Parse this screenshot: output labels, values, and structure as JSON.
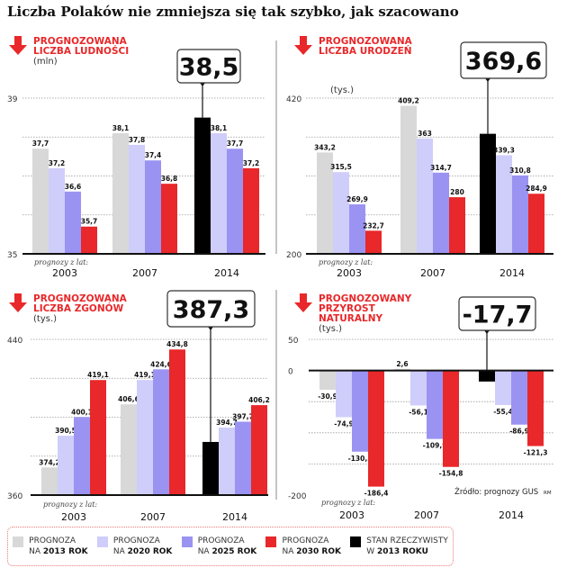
{
  "title": "Liczba Polaków nie zmniejsza się tak szybko, jak szacowano",
  "source": "Źródło: prognozy GUS",
  "author_mark": "RM",
  "forecast_label": "prognozy z lat:",
  "colors": {
    "f2013": "#d8d8d8",
    "f2020": "#cfcdfa",
    "f2025": "#9b93f2",
    "f2030": "#e8282a",
    "actual": "#000000",
    "accent": "#e8282a"
  },
  "legend": [
    {
      "line1": "PROGNOZA",
      "line2a": "NA ",
      "line2b": "2013 ROK",
      "color": "#d8d8d8"
    },
    {
      "line1": "PROGNOZA",
      "line2a": "NA ",
      "line2b": "2020 ROK",
      "color": "#cfcdfa"
    },
    {
      "line1": "PROGNOZA",
      "line2a": "NA ",
      "line2b": "2025 ROK",
      "color": "#9b93f2"
    },
    {
      "line1": "PROGNOZA",
      "line2a": "NA ",
      "line2b": "2030 ROK",
      "color": "#e8282a"
    },
    {
      "line1": "STAN RZECZYWISTY",
      "line2a": "W ",
      "line2b": "2013 ROKU",
      "color": "#000000"
    }
  ],
  "chart_data": [
    {
      "type": "bar",
      "title": [
        "PROGNOZOWANA",
        "LICZBA LUDNOŚCI"
      ],
      "unit": "(mln)",
      "callout": "38,5",
      "categories": [
        "2003",
        "2007",
        "2014"
      ],
      "ylim": [
        35,
        39
      ],
      "yticks": [
        39,
        35
      ],
      "grid_step": 1,
      "grid": true,
      "groups": [
        {
          "bars": [
            {
              "s": "f2013",
              "v": 37.7
            },
            {
              "s": "f2020",
              "v": 37.2
            },
            {
              "s": "f2025",
              "v": 36.6
            },
            {
              "s": "f2030",
              "v": 35.7
            }
          ]
        },
        {
          "bars": [
            {
              "s": "f2013",
              "v": 38.1
            },
            {
              "s": "f2020",
              "v": 37.8
            },
            {
              "s": "f2025",
              "v": 37.4
            },
            {
              "s": "f2030",
              "v": 36.8
            }
          ]
        },
        {
          "bars": [
            {
              "s": "actual",
              "v": 38.5,
              "nolabel": true
            },
            {
              "s": "f2020",
              "v": 38.1
            },
            {
              "s": "f2025",
              "v": 37.7
            },
            {
              "s": "f2030",
              "v": 37.2
            }
          ]
        }
      ]
    },
    {
      "type": "bar",
      "title": [
        "PROGNOZOWANA",
        "LICZBA URODZEŃ"
      ],
      "unit": "(tys.)",
      "callout": "369,6",
      "categories": [
        "2003",
        "2007",
        "2014"
      ],
      "ylim": [
        200,
        420
      ],
      "yticks": [
        420,
        200
      ],
      "grid_step": 55,
      "grid": true,
      "groups": [
        {
          "bars": [
            {
              "s": "f2013",
              "v": 343.2
            },
            {
              "s": "f2020",
              "v": 315.5
            },
            {
              "s": "f2025",
              "v": 269.9
            },
            {
              "s": "f2030",
              "v": 232.7
            }
          ]
        },
        {
          "bars": [
            {
              "s": "f2013",
              "v": 409.2
            },
            {
              "s": "f2020",
              "v": 363
            },
            {
              "s": "f2025",
              "v": 314.7
            },
            {
              "s": "f2030",
              "v": 280
            }
          ]
        },
        {
          "bars": [
            {
              "s": "actual",
              "v": 369.6,
              "nolabel": true
            },
            {
              "s": "f2020",
              "v": 339.3
            },
            {
              "s": "f2025",
              "v": 310.8
            },
            {
              "s": "f2030",
              "v": 284.9
            }
          ]
        }
      ]
    },
    {
      "type": "bar",
      "title": [
        "PROGNOZOWANA",
        "LICZBA ZGONÓW"
      ],
      "unit": "(tys.)",
      "callout": "387,3",
      "categories": [
        "2003",
        "2007",
        "2014"
      ],
      "ylim": [
        360,
        440
      ],
      "yticks": [
        440,
        360
      ],
      "grid_step": 20,
      "grid": true,
      "groups": [
        {
          "bars": [
            {
              "s": "f2013",
              "v": 374.2
            },
            {
              "s": "f2020",
              "v": 390.5
            },
            {
              "s": "f2025",
              "v": 400.1
            },
            {
              "s": "f2030",
              "v": 419.1
            }
          ]
        },
        {
          "bars": [
            {
              "s": "f2013",
              "v": 406.6
            },
            {
              "s": "f2020",
              "v": 419.1
            },
            {
              "s": "f2025",
              "v": 424.6
            },
            {
              "s": "f2030",
              "v": 434.8
            }
          ]
        },
        {
          "bars": [
            {
              "s": "actual",
              "v": 387.3,
              "nolabel": true
            },
            {
              "s": "f2020",
              "v": 394.7
            },
            {
              "s": "f2025",
              "v": 397.7
            },
            {
              "s": "f2030",
              "v": 406.2
            }
          ]
        }
      ]
    },
    {
      "type": "bar",
      "title": [
        "PROGNOZOWANY",
        "PRZYROST",
        "NATURALNY"
      ],
      "unit": "(tys.)",
      "callout": "-17,7",
      "categories": [
        "2003",
        "2007",
        "2014"
      ],
      "ylim": [
        -200,
        50
      ],
      "yticks": [
        50,
        0,
        -200
      ],
      "grid_step": 50,
      "grid": true,
      "groups": [
        {
          "bars": [
            {
              "s": "f2013",
              "v": -30.9
            },
            {
              "s": "f2020",
              "v": -74.9
            },
            {
              "s": "f2025",
              "v": -130.3
            },
            {
              "s": "f2030",
              "v": -186.4
            }
          ]
        },
        {
          "bars": [
            {
              "s": "f2013",
              "v": 2.6
            },
            {
              "s": "f2020",
              "v": -56.1
            },
            {
              "s": "f2025",
              "v": -109.9
            },
            {
              "s": "f2030",
              "v": -154.8
            }
          ]
        },
        {
          "bars": [
            {
              "s": "actual",
              "v": -17.7,
              "nolabel": true
            },
            {
              "s": "f2020",
              "v": -55.4
            },
            {
              "s": "f2025",
              "v": -86.9
            },
            {
              "s": "f2030",
              "v": -121.3
            }
          ]
        }
      ]
    }
  ]
}
